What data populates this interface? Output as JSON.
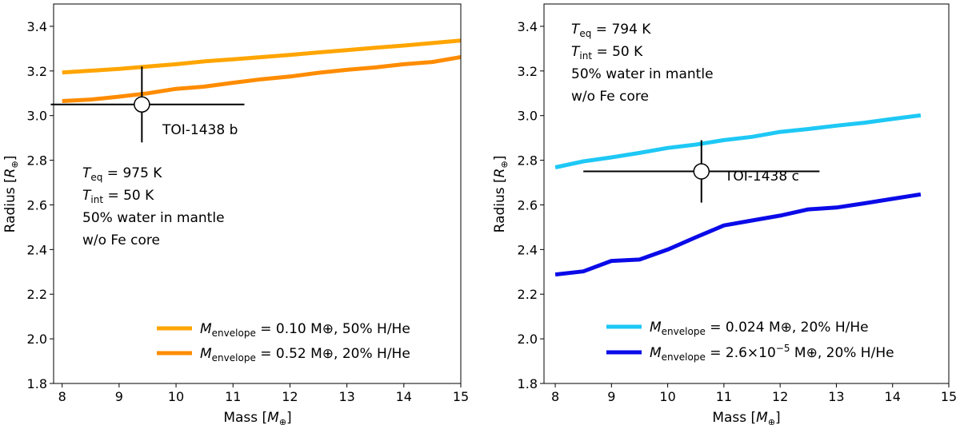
{
  "chart_data": [
    {
      "type": "line",
      "panel": "left",
      "xlabel": "Mass [M⊕]",
      "ylabel": "Radius [R⊕]",
      "xlim": [
        7.85,
        15
      ],
      "ylim": [
        1.8,
        3.5
      ],
      "xticks": [
        8,
        9,
        10,
        11,
        12,
        13,
        14,
        15
      ],
      "yticks": [
        1.8,
        2.0,
        2.2,
        2.4,
        2.6,
        2.8,
        3.0,
        3.2,
        3.4
      ],
      "x": [
        8,
        8.5,
        9,
        9.5,
        10,
        10.5,
        11,
        11.5,
        12,
        12.5,
        13,
        13.5,
        14,
        14.5,
        15
      ],
      "series": [
        {
          "name": "M_envelope = 0.10 M⊕, 50% H/He",
          "color": "#ffa500",
          "values": [
            3.193,
            3.201,
            3.209,
            3.22,
            3.23,
            3.243,
            3.252,
            3.262,
            3.272,
            3.283,
            3.293,
            3.304,
            3.314,
            3.325,
            3.336
          ]
        },
        {
          "name": "M_envelope = 0.52 M⊕, 20% H/He",
          "color": "#ff8c00",
          "values": [
            3.065,
            3.072,
            3.085,
            3.1,
            3.12,
            3.13,
            3.147,
            3.163,
            3.175,
            3.192,
            3.205,
            3.216,
            3.23,
            3.24,
            3.262
          ]
        }
      ],
      "planet": {
        "name": "TOI-1438 b",
        "mass": 9.4,
        "mass_err_minus": 1.6,
        "mass_err_plus": 1.8,
        "radius": 3.05,
        "radius_err": 0.17
      },
      "annotation": {
        "teq_label": "T",
        "teq_sub": "eq",
        "teq_value": " = 975 K",
        "tint_label": "T",
        "tint_sub": "int",
        "tint_value": " = 50 K",
        "line3": "50% water in mantle",
        "line4": "w/o Fe core"
      },
      "legend_entries": [
        {
          "m": "M",
          "sub": "envelope",
          "text": " = 0.10 M⊕, 50% H/He"
        },
        {
          "m": "M",
          "sub": "envelope",
          "text": " = 0.52 M⊕, 20% H/He"
        }
      ],
      "legend_position": "lower-right"
    },
    {
      "type": "line",
      "panel": "right",
      "xlabel": "Mass [M⊕]",
      "ylabel": "Radius [R⊕]",
      "xlim": [
        7.8,
        15
      ],
      "ylim": [
        1.8,
        3.5
      ],
      "xticks": [
        8,
        9,
        10,
        11,
        12,
        13,
        14,
        15
      ],
      "yticks": [
        1.8,
        2.0,
        2.2,
        2.4,
        2.6,
        2.8,
        3.0,
        3.2,
        3.4
      ],
      "x": [
        8,
        8.5,
        9,
        9.5,
        10,
        10.5,
        11,
        11.5,
        12,
        12.5,
        13,
        13.5,
        14,
        14.5
      ],
      "series": [
        {
          "name": "M_envelope = 0.024 M⊕, 20% H/He",
          "color": "#1ec8f5",
          "values": [
            2.768,
            2.795,
            2.813,
            2.833,
            2.855,
            2.87,
            2.89,
            2.905,
            2.927,
            2.94,
            2.955,
            2.968,
            2.985,
            3.001
          ]
        },
        {
          "name": "M_envelope = 2.6×10^-5 M⊕, 20% H/He",
          "color": "#0a0ae8",
          "values": [
            2.288,
            2.302,
            2.349,
            2.355,
            2.4,
            2.455,
            2.508,
            2.53,
            2.552,
            2.58,
            2.588,
            2.607,
            2.627,
            2.647
          ]
        }
      ],
      "planet": {
        "name": "TOI-1438 c",
        "mass": 10.6,
        "mass_err_minus": 2.1,
        "mass_err_plus": 2.1,
        "radius": 2.75,
        "radius_err": 0.14
      },
      "annotation": {
        "teq_label": "T",
        "teq_sub": "eq",
        "teq_value": " = 794 K",
        "tint_label": "T",
        "tint_sub": "int",
        "tint_value": " = 50 K",
        "line3": "50% water in mantle",
        "line4": "w/o Fe core"
      },
      "legend_entries": [
        {
          "m": "M",
          "sub": "envelope",
          "text": " = 0.024 M⊕, 20% H/He"
        },
        {
          "m": "M",
          "sub": "envelope",
          "text": " = 2.6×10",
          "sup": "−5",
          "text2": " M⊕, 20% H/He"
        }
      ],
      "legend_position": "lower-right"
    }
  ]
}
